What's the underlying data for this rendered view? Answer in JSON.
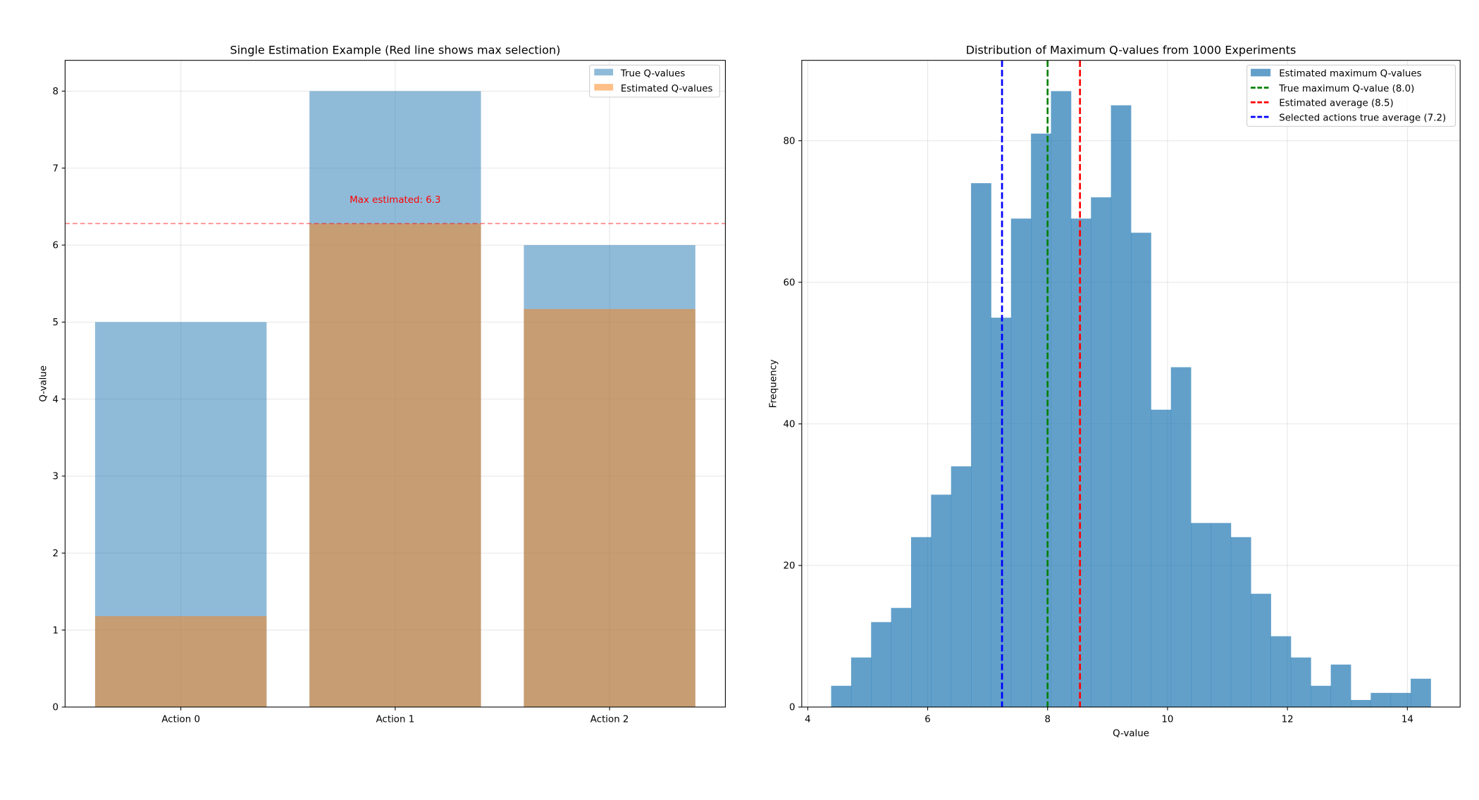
{
  "chart_data": [
    {
      "type": "bar",
      "title": "Single Estimation Example (Red line shows max selection)",
      "xlabel": "",
      "ylabel": "Q-value",
      "categories": [
        "Action 0",
        "Action 1",
        "Action 2"
      ],
      "series": [
        {
          "name": "True Q-values",
          "values": [
            5.0,
            8.0,
            6.0
          ],
          "color": "#1f77b4",
          "alpha": 0.5
        },
        {
          "name": "Estimated Q-values",
          "values": [
            1.18,
            6.28,
            5.17
          ],
          "color": "#ff7f0e",
          "alpha": 0.5
        }
      ],
      "hline": {
        "value": 6.28,
        "color": "#ff0000",
        "style": "dashed"
      },
      "annotation": {
        "text": "Max estimated: 6.3",
        "x": 1,
        "y": 6.6,
        "color": "#ff0000"
      },
      "ylim": [
        0,
        8.4
      ],
      "yticks": [
        0,
        1,
        2,
        3,
        4,
        5,
        6,
        7,
        8
      ],
      "grid": true,
      "legend": "top-right"
    },
    {
      "type": "histogram",
      "title": "Distribution of Maximum Q-values from 1000 Experiments",
      "xlabel": "Q-value",
      "ylabel": "Frequency",
      "bin_start": 4.39,
      "bin_width": 0.3333,
      "counts": [
        3,
        7,
        12,
        14,
        24,
        30,
        34,
        74,
        55,
        69,
        81,
        87,
        69,
        72,
        85,
        67,
        42,
        48,
        26,
        26,
        24,
        16,
        10,
        7,
        3,
        6,
        1,
        2,
        2,
        4
      ],
      "bar_color": "#1f77b4",
      "vlines": [
        {
          "label": "True maximum Q-value (8.0)",
          "value": 8.0,
          "color": "#008000"
        },
        {
          "label": "Estimated average (8.5)",
          "value": 8.54,
          "color": "#ff0000"
        },
        {
          "label": "Selected actions true average (7.2)",
          "value": 7.24,
          "color": "#0000ff"
        }
      ],
      "hist_label": "Estimated maximum Q-values",
      "xlim": [
        3.9,
        14.88
      ],
      "ylim": [
        0,
        91.35
      ],
      "xticks": [
        4,
        6,
        8,
        10,
        12,
        14
      ],
      "yticks": [
        0,
        20,
        40,
        60,
        80
      ],
      "grid": true,
      "legend": "top-right"
    }
  ]
}
